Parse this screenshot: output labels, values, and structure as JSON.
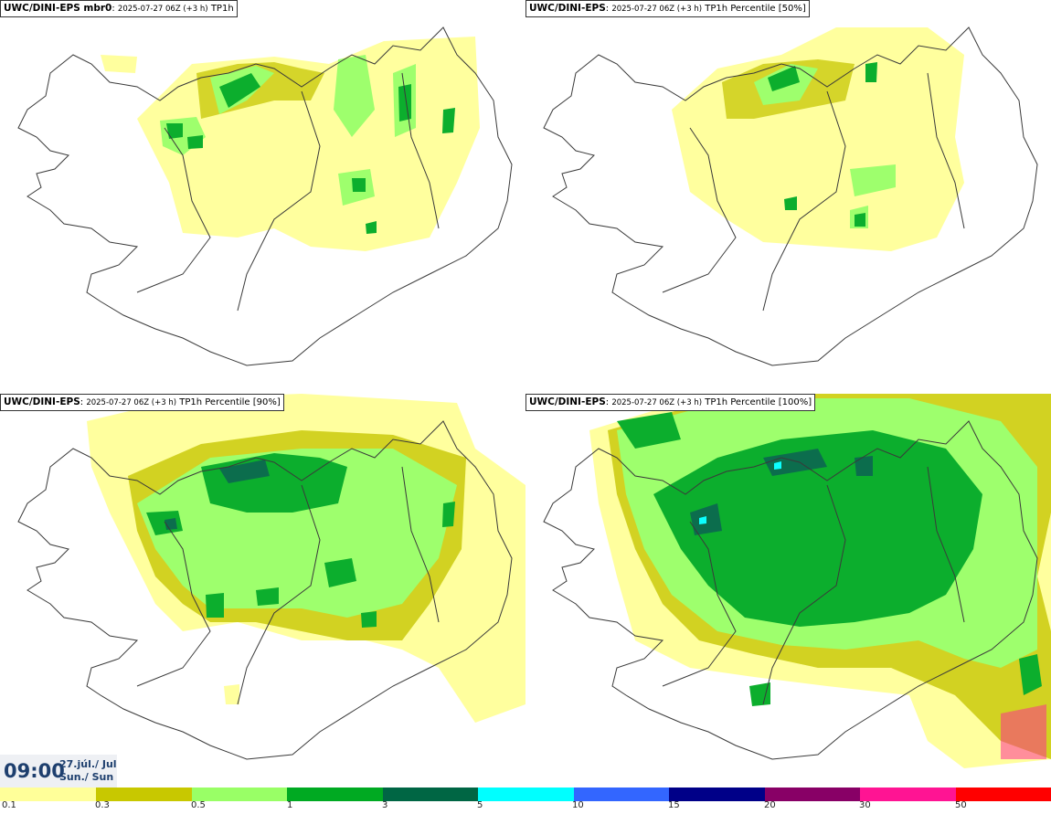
{
  "panels": [
    {
      "model": "UWC/DINI-EPS mbr0",
      "run": "2025-07-27 06Z (+3 h)",
      "field": "TP1h"
    },
    {
      "model": "UWC/DINI-EPS",
      "run": "2025-07-27 06Z (+3 h)",
      "field": "TP1h Percentile [50%]"
    },
    {
      "model": "UWC/DINI-EPS",
      "run": "2025-07-27 06Z (+3 h)",
      "field": "TP1h Percentile [90%]"
    },
    {
      "model": "UWC/DINI-EPS",
      "run": "2025-07-27 06Z (+3 h)",
      "field": "TP1h Percentile [100%]"
    }
  ],
  "valid": {
    "time": "09:00",
    "date_line1": "27.júl./ Jul",
    "date_line2": "Sun./ Sun"
  },
  "legend": {
    "labels": [
      "0.1",
      "0.3",
      "0.5",
      "1",
      "3",
      "5",
      "10",
      "15",
      "20",
      "30",
      "50"
    ],
    "colors": [
      "#ffff99",
      "#c8c800",
      "#99ff66",
      "#00aa22",
      "#006644",
      "#00ffff",
      "#3366ff",
      "#000088",
      "#880066",
      "#ff1493",
      "#ff0000"
    ]
  },
  "colors": {
    "coast": "#3a3a3a",
    "time_text": "#1e3f6e",
    "time_bg": "#eef0f4"
  }
}
